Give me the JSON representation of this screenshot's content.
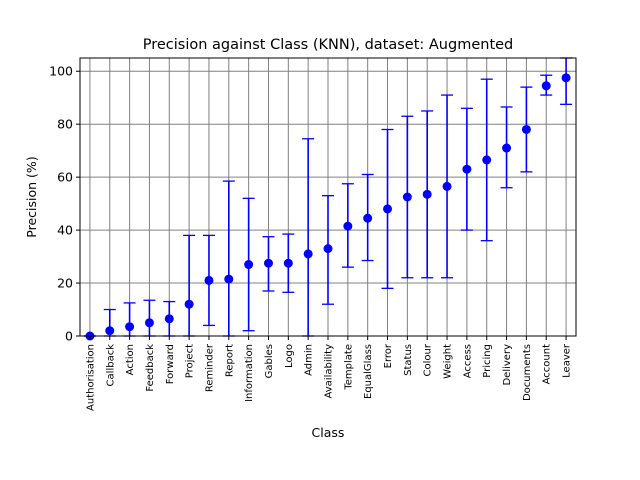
{
  "chart_data": {
    "type": "scatter",
    "title": "Precision against Class (KNN), dataset: Augmented",
    "xlabel": "Class",
    "ylabel": "Precision (%)",
    "ylim": [
      0,
      105
    ],
    "yticks": [
      0,
      20,
      40,
      60,
      80,
      100
    ],
    "grid": true,
    "marker_color": "#0000ff",
    "grid_color": "#808080",
    "categories": [
      "Authorisation",
      "Callback",
      "Action",
      "Feedback",
      "Forward",
      "Project",
      "Reminder",
      "Report",
      "Information",
      "Gables",
      "Logo",
      "Admin",
      "Availability",
      "Template",
      "EqualGlass",
      "Error",
      "Status",
      "Colour",
      "Weight",
      "Access",
      "Pricing",
      "Delivery",
      "Documents",
      "Account",
      "Leaver"
    ],
    "values": [
      0,
      2,
      3.5,
      5,
      6.5,
      12,
      21,
      21.5,
      27,
      27.5,
      27.5,
      31,
      33,
      41.5,
      44.5,
      48,
      52.5,
      53.5,
      56.5,
      63,
      66.5,
      71,
      78,
      94.5,
      97.5
    ],
    "error_low": [
      0,
      0,
      0,
      0,
      0,
      0,
      4,
      0,
      2,
      17,
      16.5,
      0,
      12,
      26,
      28.5,
      18,
      22,
      22,
      22,
      40,
      36,
      56,
      62,
      91,
      87.5
    ],
    "error_high": [
      0,
      10,
      12.5,
      13.5,
      13,
      38,
      38,
      58.5,
      52,
      37.5,
      38.5,
      74.5,
      53,
      57.5,
      61,
      78,
      83,
      85,
      91,
      86,
      97,
      86.5,
      94,
      98.5,
      105
    ]
  }
}
